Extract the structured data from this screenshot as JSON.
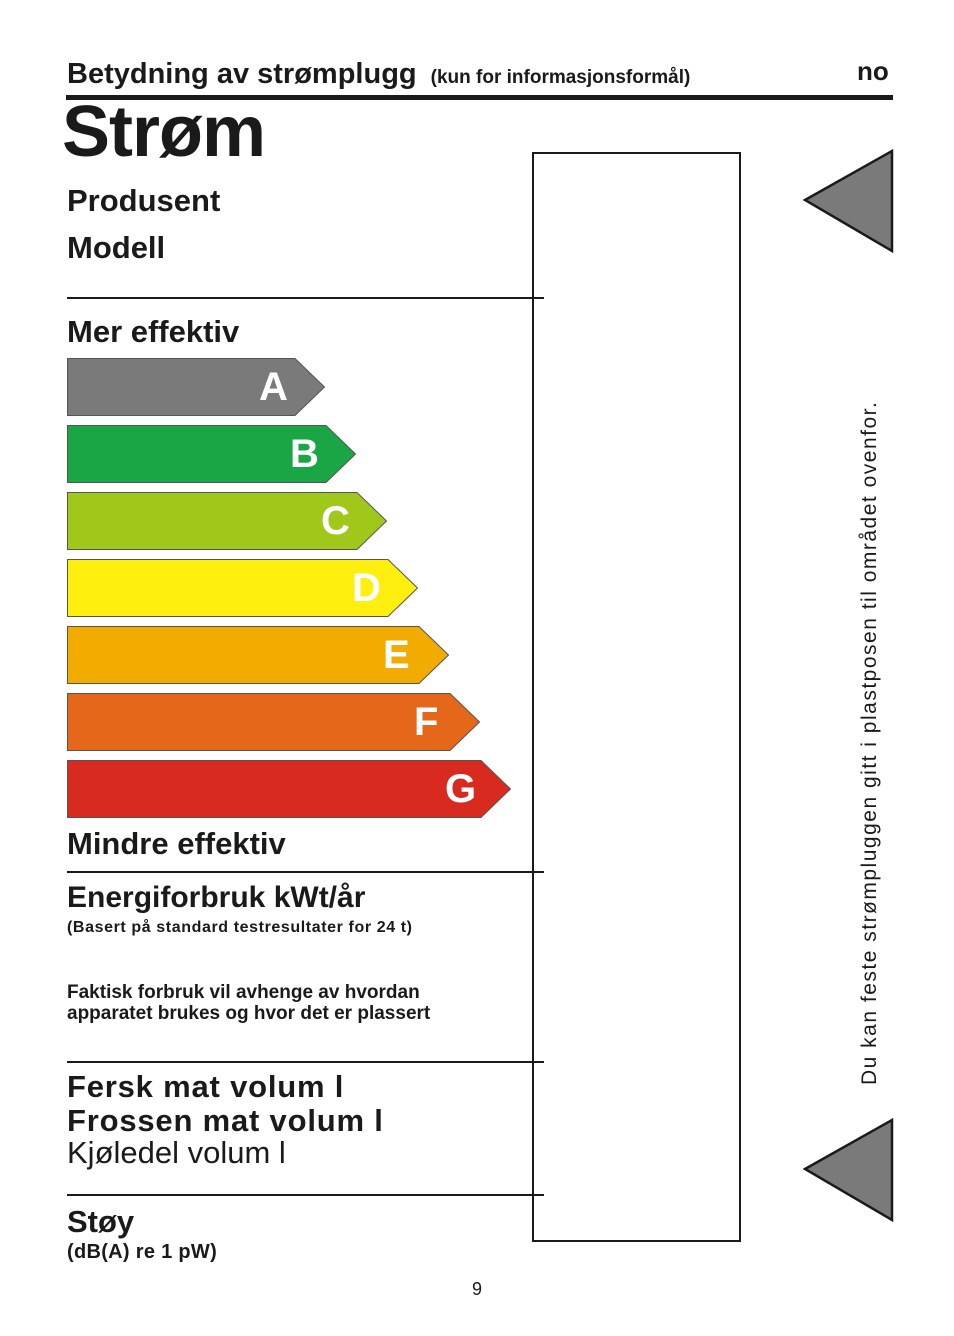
{
  "header": {
    "title": "Betydning av strømplugg",
    "subtitle": "(kun for informasjonsformål)",
    "language_code": "no"
  },
  "label": {
    "title": "Strøm",
    "manufacturer_label": "Produsent",
    "model_label": "Modell",
    "more_efficient_label": "Mer effektiv",
    "less_efficient_label": "Mindre effektiv",
    "efficiency_classes": [
      {
        "letter": "A",
        "color": "#7a7a7a"
      },
      {
        "letter": "B",
        "color": "#1aa645"
      },
      {
        "letter": "C",
        "color": "#a0c81a"
      },
      {
        "letter": "D",
        "color": "#ffef0f"
      },
      {
        "letter": "E",
        "color": "#f2ac00"
      },
      {
        "letter": "F",
        "color": "#e5671a"
      },
      {
        "letter": "G",
        "color": "#d82a1f"
      }
    ],
    "energy_label": "Energiforbruk kWt/år",
    "energy_basis": "(Basert på standard testresultater for 24 t)",
    "actual_usage_note_line1": "Faktisk forbruk vil avhenge av hvordan",
    "actual_usage_note_line2": "apparatet brukes og hvor det er plassert",
    "fresh_volume_label": "Fersk mat volum  l",
    "frozen_volume_label": "Frossen mat volum  l",
    "chiller_volume_label": "Kjøledel volum  l",
    "noise_label": "Støy",
    "noise_unit": "(dB(A) re 1 pW)"
  },
  "side_instruction": "Du  kan  feste  strømpluggen  gitt  i  plastposen  til  området  ovenfor.",
  "page_number": "9",
  "colors": {
    "arrow_marker": "#7a7a7a",
    "text": "#1a1a1a"
  }
}
